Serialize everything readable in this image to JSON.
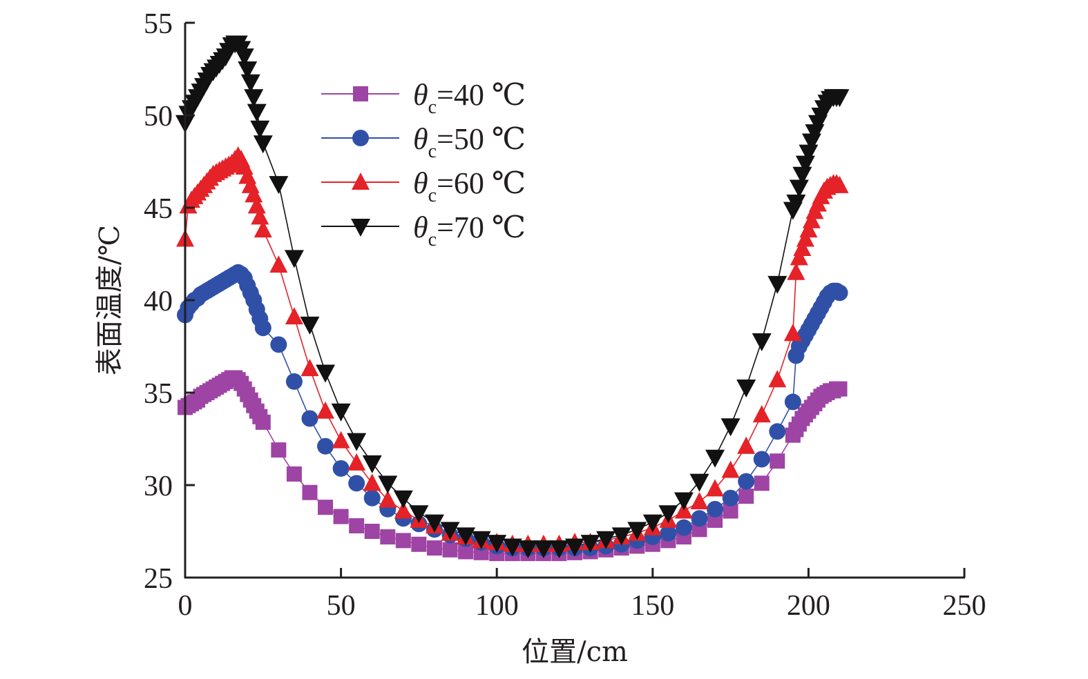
{
  "chart_data": {
    "type": "line",
    "title": "",
    "xlabel": "位置/cm",
    "ylabel": "表面温度/℃",
    "xlim": [
      0,
      250
    ],
    "ylim": [
      25,
      55
    ],
    "xticks": [
      0,
      50,
      100,
      150,
      200,
      250
    ],
    "yticks": [
      25,
      30,
      35,
      40,
      45,
      50,
      55
    ],
    "xtick_labels": [
      "0",
      "50",
      "100",
      "150",
      "200",
      "250"
    ],
    "ytick_labels": [
      "25",
      "30",
      "35",
      "40",
      "45",
      "50",
      "55"
    ],
    "grid": false,
    "legend_position": "top-center",
    "x": [
      0,
      1,
      2,
      3,
      4,
      5,
      6,
      7,
      8,
      9,
      10,
      11,
      12,
      13,
      14,
      15,
      16,
      17,
      18,
      19,
      20,
      21,
      22,
      23,
      24,
      25,
      30,
      35,
      40,
      45,
      50,
      55,
      60,
      65,
      70,
      75,
      80,
      85,
      90,
      95,
      100,
      105,
      110,
      115,
      120,
      125,
      130,
      135,
      140,
      145,
      150,
      155,
      160,
      165,
      170,
      175,
      180,
      185,
      190,
      195,
      196,
      197,
      198,
      199,
      200,
      201,
      202,
      203,
      204,
      205,
      206,
      207,
      208,
      209,
      210
    ],
    "series": [
      {
        "name": "θc=40 ℃",
        "legend_main": "θ",
        "legend_sub": "c",
        "legend_rest": "=40 ℃",
        "color": "#9e44a4",
        "marker": "square",
        "values": [
          34.2,
          34.3,
          34.4,
          34.5,
          34.6,
          34.8,
          34.9,
          35.0,
          35.1,
          35.2,
          35.3,
          35.4,
          35.5,
          35.6,
          35.7,
          35.8,
          35.8,
          35.7,
          35.5,
          35.2,
          34.9,
          34.6,
          34.3,
          34.0,
          33.7,
          33.4,
          31.9,
          30.6,
          29.6,
          28.8,
          28.3,
          27.8,
          27.5,
          27.2,
          27.0,
          26.8,
          26.6,
          26.5,
          26.4,
          26.35,
          26.3,
          26.3,
          26.3,
          26.3,
          26.3,
          26.35,
          26.4,
          26.5,
          26.6,
          26.7,
          26.8,
          27.0,
          27.2,
          27.6,
          28.1,
          28.6,
          29.4,
          30.1,
          31.3,
          32.7,
          33.0,
          33.3,
          33.6,
          33.8,
          34.0,
          34.2,
          34.4,
          34.6,
          34.8,
          34.9,
          35.0,
          35.1,
          35.1,
          35.2,
          35.2
        ]
      },
      {
        "name": "θc=50 ℃",
        "legend_main": "θ",
        "legend_sub": "c",
        "legend_rest": "=50 ℃",
        "color": "#3050a8",
        "marker": "circle",
        "values": [
          39.2,
          39.6,
          39.8,
          40.0,
          40.1,
          40.3,
          40.4,
          40.5,
          40.6,
          40.7,
          40.8,
          40.9,
          41.0,
          41.1,
          41.2,
          41.3,
          41.4,
          41.5,
          41.4,
          41.2,
          40.8,
          40.4,
          40.0,
          39.5,
          39.0,
          38.5,
          37.6,
          35.6,
          33.6,
          32.1,
          30.9,
          30.1,
          29.3,
          28.7,
          28.2,
          27.9,
          27.6,
          27.3,
          27.1,
          26.9,
          26.7,
          26.6,
          26.6,
          26.6,
          26.6,
          26.6,
          26.6,
          26.7,
          26.8,
          27.0,
          27.2,
          27.4,
          27.7,
          28.2,
          28.7,
          29.3,
          30.2,
          31.4,
          32.9,
          34.5,
          37.0,
          37.5,
          37.8,
          38.1,
          38.4,
          38.7,
          39.0,
          39.3,
          39.6,
          39.9,
          40.2,
          40.4,
          40.5,
          40.5,
          40.4
        ]
      },
      {
        "name": "θc=60 ℃",
        "legend_main": "θ",
        "legend_sub": "c",
        "legend_rest": "=60 ℃",
        "color": "#e42228",
        "marker": "triangle-up",
        "values": [
          43.3,
          45.1,
          45.4,
          45.6,
          45.8,
          46.0,
          46.2,
          46.4,
          46.6,
          46.8,
          46.9,
          47.0,
          47.1,
          47.2,
          47.3,
          47.4,
          47.6,
          47.8,
          47.6,
          47.2,
          46.7,
          46.2,
          45.7,
          45.1,
          44.5,
          43.8,
          41.9,
          39.1,
          36.3,
          34.0,
          32.4,
          31.2,
          30.1,
          29.2,
          28.6,
          28.1,
          27.8,
          27.4,
          27.2,
          27.0,
          26.9,
          26.8,
          26.8,
          26.8,
          26.8,
          26.9,
          26.9,
          27.0,
          27.2,
          27.4,
          27.7,
          28.1,
          28.6,
          29.1,
          29.8,
          30.8,
          32.1,
          33.8,
          35.7,
          38.2,
          41.5,
          42.3,
          42.8,
          43.3,
          43.8,
          44.3,
          44.8,
          45.2,
          45.6,
          45.9,
          46.1,
          46.2,
          46.3,
          46.3,
          46.2
        ]
      },
      {
        "name": "θc=70 ℃",
        "legend_main": "θ",
        "legend_sub": "c",
        "legend_rest": "=70 ℃",
        "color": "#111111",
        "marker": "triangle-down",
        "values": [
          49.6,
          50.1,
          50.4,
          50.7,
          51.0,
          51.3,
          51.6,
          51.9,
          52.2,
          52.4,
          52.6,
          52.8,
          53.0,
          53.2,
          53.5,
          53.8,
          53.9,
          53.9,
          53.6,
          53.2,
          52.5,
          51.8,
          51.0,
          50.2,
          49.3,
          48.5,
          46.3,
          42.3,
          38.7,
          36.1,
          34.0,
          32.4,
          31.2,
          30.1,
          29.3,
          28.5,
          28.0,
          27.6,
          27.3,
          27.1,
          26.9,
          26.7,
          26.6,
          26.6,
          26.6,
          26.7,
          26.9,
          27.1,
          27.3,
          27.6,
          28.0,
          28.5,
          29.2,
          30.2,
          31.5,
          33.2,
          35.3,
          37.8,
          40.9,
          44.9,
          45.3,
          46.1,
          46.8,
          47.4,
          48.0,
          48.6,
          49.1,
          49.6,
          50.0,
          50.4,
          50.7,
          50.9,
          51.0,
          51.0,
          51.0
        ]
      }
    ]
  }
}
